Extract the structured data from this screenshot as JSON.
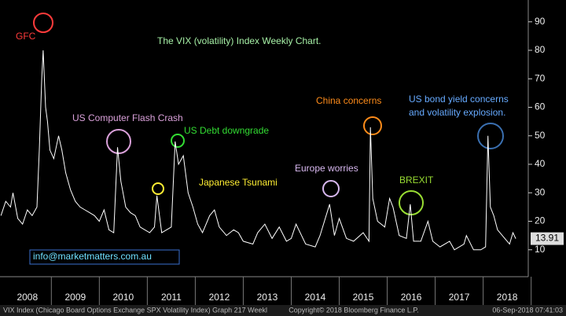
{
  "chart_data": {
    "type": "line",
    "title": "The VIX (volatility) Index Weekly Chart.",
    "title_color": "#a6f0a6",
    "x": [
      2007.95,
      2008.05,
      2008.15,
      2008.2,
      2008.3,
      2008.4,
      2008.5,
      2008.6,
      2008.7,
      2008.75,
      2008.8,
      2008.83,
      2008.88,
      2008.92,
      2008.97,
      2009.05,
      2009.15,
      2009.22,
      2009.3,
      2009.4,
      2009.5,
      2009.6,
      2009.7,
      2009.8,
      2009.9,
      2010.0,
      2010.1,
      2010.2,
      2010.3,
      2010.38,
      2010.45,
      2010.55,
      2010.65,
      2010.75,
      2010.85,
      2010.95,
      2011.05,
      2011.15,
      2011.2,
      2011.3,
      2011.4,
      2011.5,
      2011.58,
      2011.65,
      2011.75,
      2011.85,
      2011.95,
      2012.05,
      2012.15,
      2012.3,
      2012.4,
      2012.5,
      2012.65,
      2012.8,
      2012.9,
      2013.0,
      2013.2,
      2013.3,
      2013.45,
      2013.6,
      2013.75,
      2013.9,
      2014.0,
      2014.1,
      2014.3,
      2014.5,
      2014.6,
      2014.8,
      2014.9,
      2015.0,
      2015.15,
      2015.3,
      2015.5,
      2015.62,
      2015.65,
      2015.7,
      2015.8,
      2015.95,
      2016.05,
      2016.12,
      2016.25,
      2016.4,
      2016.48,
      2016.55,
      2016.7,
      2016.85,
      2016.95,
      2017.1,
      2017.3,
      2017.4,
      2017.6,
      2017.65,
      2017.8,
      2017.95,
      2018.05,
      2018.1,
      2018.15,
      2018.22,
      2018.3,
      2018.45,
      2018.55,
      2018.62,
      2018.68
    ],
    "values": [
      22,
      27,
      25,
      30,
      21,
      19,
      24,
      22,
      25,
      45,
      70,
      80,
      60,
      55,
      45,
      42,
      50,
      45,
      37,
      31,
      27,
      25,
      24,
      23,
      22,
      20,
      24,
      17,
      16,
      46,
      34,
      25,
      23,
      22,
      18,
      17,
      16,
      18,
      29,
      16,
      17,
      18,
      48,
      40,
      43,
      30,
      25,
      19,
      16,
      22,
      24,
      18,
      15,
      17,
      16,
      13,
      12,
      16,
      19,
      14,
      18,
      13,
      14,
      19,
      12,
      11,
      15,
      26,
      15,
      21,
      14,
      13,
      16,
      13,
      53,
      28,
      20,
      18,
      28,
      25,
      15,
      14,
      26,
      13,
      13,
      20,
      13,
      11,
      13,
      10,
      12,
      15,
      10,
      10,
      11,
      50,
      25,
      22,
      17,
      14,
      12,
      16,
      13.91
    ],
    "color": "#ffffff",
    "xlim": [
      2007.93,
      2018.94
    ],
    "xticks": [
      {
        "value": 2008.5,
        "label": "2008"
      },
      {
        "value": 2009.5,
        "label": "2009"
      },
      {
        "value": 2010.5,
        "label": "2010"
      },
      {
        "value": 2011.5,
        "label": "2011"
      },
      {
        "value": 2012.5,
        "label": "2012"
      },
      {
        "value": 2013.5,
        "label": "2013"
      },
      {
        "value": 2014.5,
        "label": "2014"
      },
      {
        "value": 2015.5,
        "label": "2015"
      },
      {
        "value": 2016.5,
        "label": "2016"
      },
      {
        "value": 2017.5,
        "label": "2017"
      },
      {
        "value": 2018.5,
        "label": "2018"
      }
    ],
    "ylim": [
      0,
      96
    ],
    "yticks": [
      10,
      20,
      30,
      40,
      50,
      60,
      70,
      80,
      90
    ],
    "grid": false,
    "annotations": [
      {
        "text": "GFC",
        "color": "#ff3b3b"
      },
      {
        "text": "US Computer Flash Crash",
        "color": "#d9a0d9"
      },
      {
        "text": "US Debt downgrade",
        "color": "#33dd33"
      },
      {
        "text": "Japanese Tsunami",
        "color": "#ffee33"
      },
      {
        "text": "Europe worries",
        "color": "#d8b8f0"
      },
      {
        "text": "China concerns",
        "color": "#ff8c1a"
      },
      {
        "text": "BREXIT",
        "color": "#99dd33"
      },
      {
        "text": "US bond yield concerns",
        "color": "#66aaff"
      },
      {
        "text": "and volatility explosion.",
        "color": "#66aaff"
      }
    ],
    "contact": "info@marketmatters.com.au",
    "footer": {
      "left": "VIX Index (Chicago Board Options Exchange SPX Volatility Index) Graph 217  Weekl",
      "center": "Copyright© 2018 Bloomberg Finance L.P.",
      "right": "06-Sep-2018 07:41:03"
    }
  }
}
